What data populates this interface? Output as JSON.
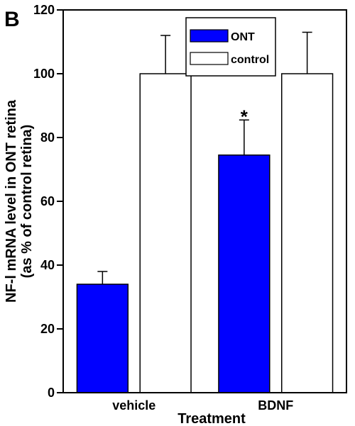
{
  "panel_label": "B",
  "colors": {
    "ONT": "#0000ff",
    "control": "#ffffff",
    "outline": "#000000"
  },
  "chart_data": {
    "type": "bar",
    "categories": [
      "vehicle",
      "BDNF"
    ],
    "series": [
      {
        "name": "ONT",
        "values": [
          34,
          74.5
        ],
        "errors": [
          4,
          11
        ]
      },
      {
        "name": "control",
        "values": [
          100,
          100
        ],
        "errors": [
          12,
          13
        ]
      }
    ],
    "xlabel": "Treatment",
    "ylabel_line1": "NF-l mRNA level in ONT retina",
    "ylabel_line2": "(as % of control retina)",
    "ylim": [
      0,
      120
    ],
    "yticks": [
      "0",
      "20",
      "40",
      "60",
      "80",
      "100",
      "120"
    ],
    "annotations": [
      {
        "category": "BDNF",
        "series": "ONT",
        "text": "*"
      }
    ],
    "legend_position": "top-center",
    "grid": false
  }
}
